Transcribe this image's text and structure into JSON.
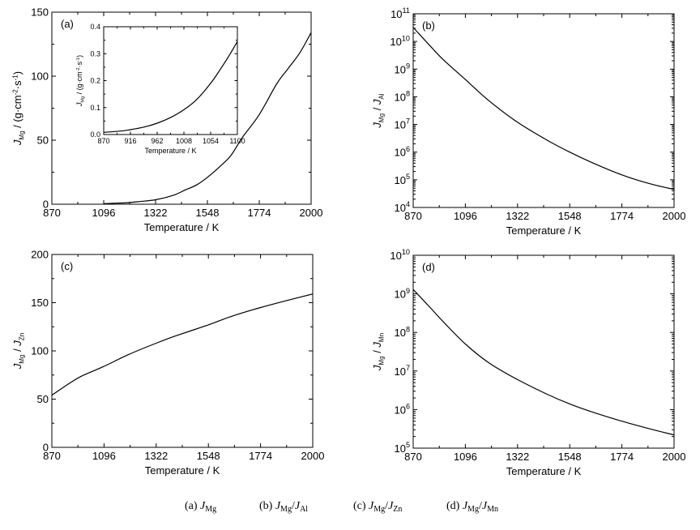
{
  "chart_data": [
    {
      "id": "a",
      "type": "line",
      "panel_label": "(a)",
      "xlabel": "Temperature / K",
      "ylabel": {
        "main": "J",
        "sub": "Mg",
        "rest": " / (g·cm",
        "sup1": "-2",
        "mid": "·s",
        "sup2": "-1",
        "end": ")"
      },
      "xlim": [
        870,
        2000
      ],
      "ylim": [
        0,
        150
      ],
      "xticks": [
        870,
        1096,
        1322,
        1548,
        1774,
        2000
      ],
      "yticks": [
        0,
        50,
        100,
        150
      ],
      "scale": "linear",
      "series": [
        {
          "x": [
            1096,
            1150,
            1200,
            1250,
            1322,
            1400,
            1450,
            1500,
            1548,
            1600,
            1650,
            1700,
            1774,
            1850,
            1900,
            1950,
            2000
          ],
          "y": [
            0.4,
            0.8,
            1.2,
            2.0,
            3.5,
            7,
            11,
            15,
            21,
            29,
            38,
            52,
            70,
            94,
            106,
            118,
            134
          ]
        }
      ]
    },
    {
      "id": "a-inset",
      "type": "line",
      "xlabel": "Temperature / K",
      "ylabel": {
        "main": "J",
        "sub": "Mg",
        "rest": " / (g·cm",
        "sup1": "-2",
        "mid": "·s",
        "sup2": "-1",
        "end": ")"
      },
      "xlim": [
        870,
        1100
      ],
      "ylim": [
        0,
        0.4
      ],
      "xticks": [
        870,
        916,
        962,
        1008,
        1054,
        1100
      ],
      "yticks": [
        0.0,
        0.1,
        0.2,
        0.3,
        0.4
      ],
      "scale": "linear",
      "series": [
        {
          "x": [
            870,
            900,
            916,
            940,
            962,
            985,
            1008,
            1030,
            1054,
            1070,
            1085,
            1100
          ],
          "y": [
            0.008,
            0.013,
            0.018,
            0.028,
            0.042,
            0.063,
            0.092,
            0.13,
            0.19,
            0.24,
            0.29,
            0.345
          ]
        }
      ]
    },
    {
      "id": "b",
      "type": "line",
      "panel_label": "(b)",
      "xlabel": "Temperature / K",
      "ylabel": {
        "main": "J",
        "sub": "Mg",
        "rest": " / J",
        "sub2": "Al"
      },
      "xlim": [
        870,
        2000
      ],
      "ylim": [
        10000,
        100000000000
      ],
      "xticks": [
        870,
        1096,
        1322,
        1548,
        1774,
        2000
      ],
      "ytick_exponents": [
        4,
        5,
        6,
        7,
        8,
        9,
        10,
        11
      ],
      "scale": "log",
      "series": [
        {
          "x": [
            870,
            950,
            1000,
            1096,
            1200,
            1322,
            1450,
            1548,
            1650,
            1774,
            1900,
            2000
          ],
          "y": [
            32000000000,
            6000000000,
            2200000000,
            420000000,
            70000000,
            12000000,
            2700000,
            1000000,
            400000,
            150000,
            70000,
            45000
          ]
        }
      ]
    },
    {
      "id": "c",
      "type": "line",
      "panel_label": "(c)",
      "xlabel": "Temperature / K",
      "ylabel": {
        "main": "J",
        "sub": "Mg",
        "rest": " / J",
        "sub2": "Zn"
      },
      "xlim": [
        870,
        2000
      ],
      "ylim": [
        0,
        200
      ],
      "xticks": [
        870,
        1096,
        1322,
        1548,
        1774,
        2000
      ],
      "yticks": [
        0,
        50,
        100,
        150,
        200
      ],
      "scale": "linear",
      "series": [
        {
          "x": [
            870,
            950,
            1000,
            1096,
            1200,
            1322,
            1400,
            1548,
            1650,
            1774,
            1900,
            2000
          ],
          "y": [
            54,
            67,
            74,
            84,
            96,
            108,
            115,
            127,
            136,
            145,
            153,
            159
          ]
        }
      ]
    },
    {
      "id": "d",
      "type": "line",
      "panel_label": "(d)",
      "xlabel": "Temperature / K",
      "ylabel": {
        "main": "J",
        "sub": "Mg",
        "rest": " / J",
        "sub2": "Mn"
      },
      "xlim": [
        870,
        2000
      ],
      "ylim": [
        100000,
        10000000000
      ],
      "xticks": [
        870,
        1096,
        1322,
        1548,
        1774,
        2000
      ],
      "ytick_exponents": [
        5,
        6,
        7,
        8,
        9,
        10
      ],
      "scale": "log",
      "series": [
        {
          "x": [
            870,
            950,
            1000,
            1096,
            1200,
            1322,
            1450,
            1548,
            1650,
            1774,
            1900,
            2000
          ],
          "y": [
            1300000000,
            400000000,
            190000000,
            50000000,
            16000000,
            6000000,
            2500000,
            1400000,
            850000,
            500000,
            310000,
            220000
          ]
        }
      ]
    }
  ],
  "captions": [
    {
      "prefix": "(a) ",
      "main": "J",
      "sub": "Mg",
      "rest": "",
      "sub2": ""
    },
    {
      "prefix": "(b) ",
      "main": "J",
      "sub": "Mg",
      "rest": "/J",
      "sub2": "Al"
    },
    {
      "prefix": "(c) ",
      "main": "J",
      "sub": "Mg",
      "rest": "/J",
      "sub2": "Zn"
    },
    {
      "prefix": "(d) ",
      "main": "J",
      "sub": "Mg",
      "rest": "/J",
      "sub2": "Mn"
    }
  ]
}
